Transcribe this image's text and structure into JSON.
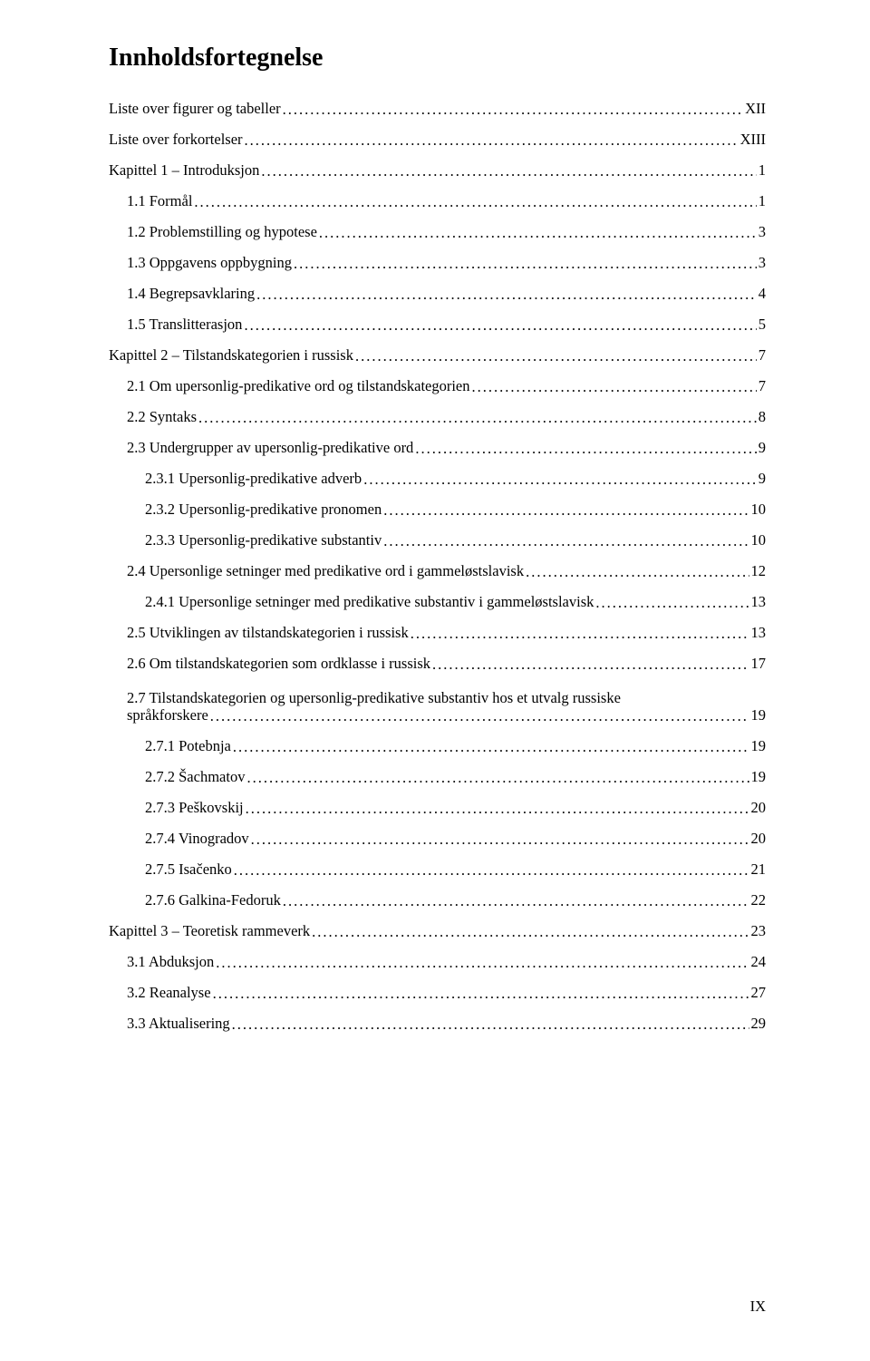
{
  "title": "Innholdsfortegnelse",
  "page_footer": "IX",
  "entries": [
    {
      "indent": 0,
      "label": "Liste over figurer og tabeller",
      "page": "XII"
    },
    {
      "indent": 0,
      "label": "Liste over forkortelser",
      "page": "XIII"
    },
    {
      "indent": 0,
      "label": "Kapittel 1 – Introduksjon",
      "page": "1"
    },
    {
      "indent": 1,
      "label": "1.1 Formål",
      "page": "1"
    },
    {
      "indent": 1,
      "label": "1.2 Problemstilling og hypotese",
      "page": "3"
    },
    {
      "indent": 1,
      "label": "1.3 Oppgavens oppbygning",
      "page": "3"
    },
    {
      "indent": 1,
      "label": "1.4 Begrepsavklaring",
      "page": "4"
    },
    {
      "indent": 1,
      "label": "1.5 Translitterasjon",
      "page": "5"
    },
    {
      "indent": 0,
      "label": "Kapittel 2 – Tilstandskategorien i russisk",
      "page": "7"
    },
    {
      "indent": 1,
      "label": "2.1 Om upersonlig-predikative ord og tilstandskategorien",
      "page": "7"
    },
    {
      "indent": 1,
      "label": "2.2 Syntaks",
      "page": "8"
    },
    {
      "indent": 1,
      "label": "2.3 Undergrupper av upersonlig-predikative ord",
      "page": "9"
    },
    {
      "indent": 2,
      "label": "2.3.1 Upersonlig-predikative adverb",
      "page": "9"
    },
    {
      "indent": 2,
      "label": "2.3.2 Upersonlig-predikative pronomen",
      "page": "10"
    },
    {
      "indent": 2,
      "label": "2.3.3 Upersonlig-predikative substantiv",
      "page": "10"
    },
    {
      "indent": 1,
      "label": "2.4 Upersonlige setninger med predikative ord i gammeløstslavisk",
      "page": "12"
    },
    {
      "indent": 2,
      "label": "2.4.1 Upersonlige setninger med predikative substantiv i gammeløstslavisk",
      "page": "13"
    },
    {
      "indent": 1,
      "label": "2.5 Utviklingen av tilstandskategorien i russisk",
      "page": "13"
    },
    {
      "indent": 1,
      "label": "2.6 Om tilstandskategorien som ordklasse i russisk",
      "page": "17"
    },
    {
      "indent": 1,
      "multiline": true,
      "line1": "2.7 Tilstandskategorien og upersonlig-predikative substantiv hos et utvalg russiske",
      "line2": "språkforskere",
      "page": "19"
    },
    {
      "indent": 2,
      "label": "2.7.1 Potebnja",
      "page": "19"
    },
    {
      "indent": 2,
      "label": "2.7.2 Šachmatov",
      "page": "19"
    },
    {
      "indent": 2,
      "label": "2.7.3 Peškovskij",
      "page": "20"
    },
    {
      "indent": 2,
      "label": "2.7.4 Vinogradov",
      "page": "20"
    },
    {
      "indent": 2,
      "label": "2.7.5 Isačenko",
      "page": "21"
    },
    {
      "indent": 2,
      "label": "2.7.6 Galkina-Fedoruk",
      "page": "22"
    },
    {
      "indent": 0,
      "label": "Kapittel 3 – Teoretisk rammeverk",
      "page": "23"
    },
    {
      "indent": 1,
      "label": "3.1 Abduksjon",
      "page": "24"
    },
    {
      "indent": 1,
      "label": "3.2 Reanalyse",
      "page": "27"
    },
    {
      "indent": 1,
      "label": "3.3 Aktualisering",
      "page": "29"
    }
  ]
}
